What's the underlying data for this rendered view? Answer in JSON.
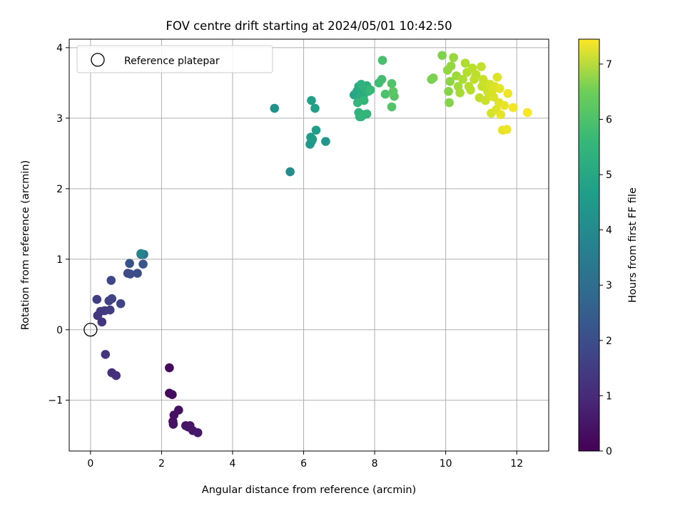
{
  "chart_data": {
    "type": "scatter",
    "title": "FOV centre drift starting at 2024/05/01 10:42:50",
    "xlabel": "Angular distance from reference (arcmin)",
    "ylabel": "Rotation from reference (arcmin)",
    "xlim": [
      -0.6,
      12.9
    ],
    "ylim": [
      -1.72,
      4.12
    ],
    "xticks": [
      0,
      2,
      4,
      6,
      8,
      10,
      12
    ],
    "yticks": [
      -1,
      0,
      1,
      2,
      3,
      4
    ],
    "xtick_labels": [
      "0",
      "2",
      "4",
      "6",
      "8",
      "10",
      "12"
    ],
    "ytick_labels": [
      "−1",
      "0",
      "1",
      "2",
      "3",
      "4"
    ],
    "grid": true,
    "legend": {
      "placement": "top-left",
      "label": "Reference platepar"
    },
    "reference_point": {
      "x": 0,
      "y": 0
    },
    "colorbar": {
      "label": "Hours from first FF file",
      "colormap": "viridis",
      "range": [
        0,
        7.45
      ],
      "ticks": [
        0,
        1,
        2,
        3,
        4,
        5,
        6,
        7
      ],
      "tick_labels": [
        "0",
        "1",
        "2",
        "3",
        "4",
        "5",
        "6",
        "7"
      ]
    },
    "points": [
      [
        2.22,
        -0.54,
        0.15
      ],
      [
        2.22,
        -0.9,
        0.2
      ],
      [
        2.3,
        -0.92,
        0.25
      ],
      [
        2.48,
        -1.14,
        0.3
      ],
      [
        2.35,
        -1.21,
        0.32
      ],
      [
        2.32,
        -1.3,
        0.34
      ],
      [
        2.33,
        -1.34,
        0.36
      ],
      [
        2.68,
        -1.36,
        0.4
      ],
      [
        2.8,
        -1.36,
        0.42
      ],
      [
        2.75,
        -1.38,
        0.44
      ],
      [
        2.88,
        -1.43,
        0.46
      ],
      [
        3.02,
        -1.46,
        0.48
      ],
      [
        0.6,
        -0.61,
        1.0
      ],
      [
        0.72,
        -0.65,
        1.05
      ],
      [
        0.42,
        -0.35,
        1.1
      ],
      [
        0.32,
        0.11,
        1.15
      ],
      [
        0.2,
        0.2,
        1.2
      ],
      [
        0.28,
        0.26,
        1.25
      ],
      [
        0.4,
        0.27,
        1.3
      ],
      [
        0.55,
        0.28,
        1.35
      ],
      [
        0.18,
        0.43,
        1.4
      ],
      [
        0.52,
        0.41,
        1.45
      ],
      [
        0.6,
        0.44,
        1.5
      ],
      [
        0.85,
        0.37,
        1.55
      ],
      [
        0.58,
        0.7,
        1.6
      ],
      [
        1.05,
        0.8,
        1.7
      ],
      [
        1.12,
        0.79,
        1.75
      ],
      [
        1.32,
        0.8,
        1.8
      ],
      [
        1.1,
        0.94,
        1.9
      ],
      [
        1.48,
        0.93,
        2.0
      ],
      [
        1.42,
        1.07,
        2.1
      ],
      [
        1.5,
        1.07,
        2.8
      ],
      [
        1.42,
        1.08,
        3.4
      ],
      [
        5.62,
        2.24,
        3.6
      ],
      [
        5.18,
        3.14,
        3.8
      ],
      [
        6.62,
        2.67,
        3.9
      ],
      [
        6.18,
        2.63,
        3.95
      ],
      [
        6.22,
        2.67,
        4.0
      ],
      [
        6.25,
        2.7,
        4.05
      ],
      [
        6.2,
        2.73,
        4.1
      ],
      [
        6.35,
        2.83,
        4.15
      ],
      [
        6.32,
        3.14,
        4.2
      ],
      [
        6.22,
        3.25,
        4.25
      ],
      [
        7.42,
        3.33,
        4.4
      ],
      [
        7.5,
        3.38,
        4.45
      ],
      [
        7.55,
        3.45,
        4.5
      ],
      [
        7.6,
        3.42,
        4.55
      ],
      [
        7.62,
        3.37,
        4.6
      ],
      [
        7.68,
        3.3,
        4.62
      ],
      [
        7.58,
        3.28,
        4.65
      ],
      [
        7.72,
        3.42,
        4.7
      ],
      [
        7.78,
        3.46,
        4.72
      ],
      [
        7.82,
        3.38,
        4.75
      ],
      [
        7.62,
        3.48,
        4.78
      ],
      [
        7.55,
        3.08,
        4.8
      ],
      [
        7.62,
        3.02,
        4.82
      ],
      [
        7.7,
        3.05,
        4.85
      ],
      [
        7.58,
        3.02,
        4.88
      ],
      [
        7.78,
        3.06,
        4.9
      ],
      [
        7.52,
        3.22,
        4.92
      ],
      [
        7.7,
        3.25,
        4.95
      ],
      [
        7.88,
        3.4,
        5.0
      ],
      [
        8.12,
        3.5,
        5.1
      ],
      [
        8.2,
        3.55,
        5.2
      ],
      [
        8.22,
        3.82,
        5.25
      ],
      [
        8.3,
        3.34,
        5.3
      ],
      [
        8.48,
        3.49,
        5.35
      ],
      [
        8.48,
        3.16,
        5.4
      ],
      [
        8.55,
        3.31,
        5.45
      ],
      [
        8.52,
        3.38,
        5.5
      ],
      [
        9.6,
        3.55,
        5.9
      ],
      [
        9.65,
        3.57,
        5.95
      ],
      [
        9.9,
        3.89,
        6.0
      ],
      [
        10.1,
        3.22,
        6.05
      ],
      [
        10.08,
        3.38,
        6.1
      ],
      [
        10.12,
        3.52,
        6.15
      ],
      [
        10.05,
        3.68,
        6.2
      ],
      [
        10.15,
        3.74,
        6.25
      ],
      [
        10.22,
        3.86,
        6.3
      ],
      [
        10.3,
        3.6,
        6.35
      ],
      [
        10.35,
        3.45,
        6.4
      ],
      [
        10.4,
        3.36,
        6.45
      ],
      [
        10.48,
        3.55,
        6.5
      ],
      [
        10.55,
        3.78,
        6.55
      ],
      [
        10.6,
        3.65,
        6.6
      ],
      [
        10.65,
        3.45,
        6.62
      ],
      [
        10.7,
        3.4,
        6.65
      ],
      [
        10.75,
        3.71,
        6.68
      ],
      [
        10.8,
        3.55,
        6.7
      ],
      [
        10.85,
        3.62,
        6.72
      ],
      [
        10.95,
        3.29,
        6.75
      ],
      [
        11.0,
        3.73,
        6.78
      ],
      [
        11.02,
        3.45,
        6.8
      ],
      [
        11.05,
        3.55,
        6.82
      ],
      [
        11.1,
        3.5,
        6.85
      ],
      [
        11.12,
        3.25,
        6.88
      ],
      [
        11.18,
        3.38,
        6.9
      ],
      [
        11.22,
        3.32,
        6.92
      ],
      [
        11.25,
        3.48,
        6.95
      ],
      [
        11.28,
        3.07,
        6.98
      ],
      [
        11.32,
        3.4,
        7.0
      ],
      [
        11.35,
        3.3,
        7.02
      ],
      [
        11.38,
        3.45,
        7.05
      ],
      [
        11.42,
        3.12,
        7.08
      ],
      [
        11.45,
        3.58,
        7.1
      ],
      [
        11.5,
        3.22,
        7.12
      ],
      [
        11.52,
        3.42,
        7.15
      ],
      [
        11.55,
        3.05,
        7.18
      ],
      [
        11.6,
        2.83,
        7.2
      ],
      [
        11.65,
        3.18,
        7.22
      ],
      [
        11.72,
        2.84,
        7.25
      ],
      [
        11.75,
        3.35,
        7.28
      ],
      [
        11.9,
        3.15,
        7.32
      ],
      [
        12.3,
        3.08,
        7.4
      ]
    ]
  }
}
